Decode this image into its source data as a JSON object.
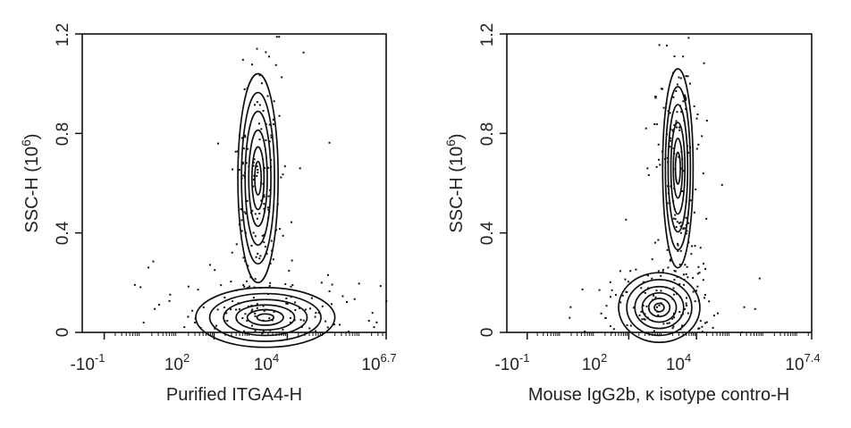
{
  "chart_data": [
    {
      "type": "scatter",
      "subtype": "flow-cytometry-contour",
      "xlabel": "Purified ITGA4-H",
      "ylabel": {
        "base": "SSC-H  (10",
        "exp": "6",
        "close": ")"
      },
      "y_ticks": [
        "0",
        "0.4",
        "0.8",
        "1.2"
      ],
      "y_tick_values": [
        0,
        0.4,
        0.8,
        1.2
      ],
      "ylim": [
        0,
        1.2
      ],
      "x_ticks": [
        {
          "base": "-10",
          "exp": "-1",
          "value": -1
        },
        {
          "base": "10",
          "exp": "2",
          "value": 2
        },
        {
          "base": "10",
          "exp": "4",
          "value": 4
        },
        {
          "base": "10",
          "exp": "6.7",
          "value": 6.7
        }
      ],
      "xlim": [
        -1.6,
        6.7
      ],
      "populations": [
        {
          "name": "",
          "center_log_x": 3.2,
          "center_y": 0.62,
          "spread_log_x": 0.55,
          "spread_y": 0.42
        },
        {
          "name": "",
          "center_log_x": 3.4,
          "center_y": 0.06,
          "spread_log_x": 1.9,
          "spread_y": 0.12
        }
      ],
      "grid": false
    },
    {
      "type": "scatter",
      "subtype": "flow-cytometry-contour",
      "xlabel": "Mouse IgG2b, κ isotype contro-H",
      "ylabel": {
        "base": "SSC-H  (10",
        "exp": "6",
        "close": ")"
      },
      "y_ticks": [
        "0",
        "0.4",
        "0.8",
        "1.2"
      ],
      "y_tick_values": [
        0,
        0.4,
        0.8,
        1.2
      ],
      "ylim": [
        0,
        1.2
      ],
      "x_ticks": [
        {
          "base": "-10",
          "exp": "-1",
          "value": -1
        },
        {
          "base": "10",
          "exp": "2",
          "value": 2
        },
        {
          "base": "10",
          "exp": "4",
          "value": 4
        },
        {
          "base": "10",
          "exp": "7.4",
          "value": 7.4
        }
      ],
      "xlim": [
        -1.6,
        7.4
      ],
      "populations": [
        {
          "name": "",
          "center_log_x": 3.45,
          "center_y": 0.66,
          "spread_log_x": 0.45,
          "spread_y": 0.4
        },
        {
          "name": "",
          "center_log_x": 2.9,
          "center_y": 0.1,
          "spread_log_x": 1.2,
          "spread_y": 0.14
        }
      ],
      "grid": false
    }
  ]
}
